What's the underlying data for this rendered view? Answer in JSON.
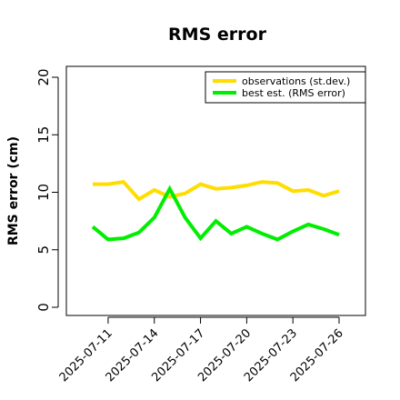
{
  "chart_data": {
    "type": "line",
    "title": "RMS error",
    "ylabel": "RMS error (cm)",
    "xlabel": "",
    "ylim": [
      0,
      21
    ],
    "yticks": [
      0,
      5,
      10,
      15,
      20
    ],
    "x": [
      "2025-07-10",
      "2025-07-11",
      "2025-07-12",
      "2025-07-13",
      "2025-07-14",
      "2025-07-15",
      "2025-07-16",
      "2025-07-17",
      "2025-07-18",
      "2025-07-19",
      "2025-07-20",
      "2025-07-21",
      "2025-07-22",
      "2025-07-23",
      "2025-07-24",
      "2025-07-25",
      "2025-07-26"
    ],
    "xticks": [
      {
        "label": "2025-07-11",
        "color": "#000000"
      },
      {
        "label": "2025-07-14",
        "color": "#000000"
      },
      {
        "label": "2025-07-17",
        "color": "#228B22"
      },
      {
        "label": "2025-07-20",
        "color": "#000000"
      },
      {
        "label": "2025-07-23",
        "color": "#000000"
      },
      {
        "label": "2025-07-26",
        "color": "#000000"
      }
    ],
    "series": [
      {
        "name": "observations (st.dev.)",
        "color": "#FFDD00",
        "values": [
          10.7,
          10.7,
          10.9,
          9.4,
          10.2,
          9.6,
          9.9,
          10.7,
          10.3,
          10.4,
          10.6,
          10.9,
          10.8,
          10.1,
          10.2,
          9.7,
          10.1
        ]
      },
      {
        "name": "best est. (RMS error)",
        "color": "#00EE00",
        "values": [
          7.0,
          5.9,
          6.0,
          6.5,
          7.8,
          10.3,
          7.8,
          6.0,
          7.5,
          6.4,
          7.0,
          6.4,
          5.9,
          6.6,
          7.2,
          6.8,
          6.3
        ]
      }
    ],
    "legend_position": "top-right",
    "grid": false
  }
}
